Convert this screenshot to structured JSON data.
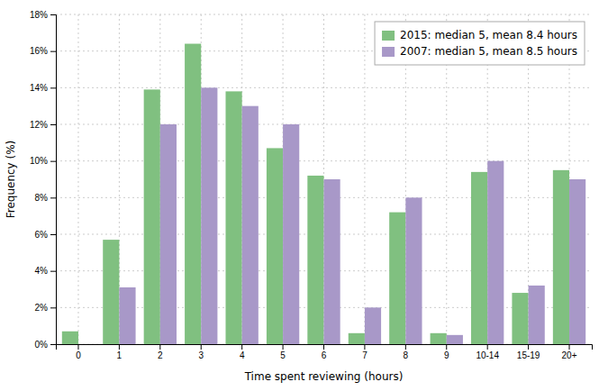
{
  "chart_data": {
    "type": "bar",
    "categories": [
      "0",
      "1",
      "2",
      "3",
      "4",
      "5",
      "6",
      "7",
      "8",
      "9",
      "10-14",
      "15-19",
      "20+"
    ],
    "series": [
      {
        "name": "2015: median 5, mean 8.4 hours",
        "color": "#80c080",
        "values": [
          0.7,
          5.7,
          13.9,
          16.4,
          13.8,
          10.7,
          9.2,
          0.6,
          7.2,
          0.6,
          9.4,
          2.8,
          9.5
        ]
      },
      {
        "name": "2007: median 5, mean 8.5 hours",
        "color": "#a898c8",
        "values": [
          0.0,
          3.1,
          12.0,
          14.0,
          13.0,
          12.0,
          9.0,
          2.0,
          8.0,
          0.5,
          10.0,
          3.2,
          9.0
        ]
      }
    ],
    "xlabel": "Time spent reviewing (hours)",
    "ylabel": "Frequency (%)",
    "ylim": [
      0,
      18
    ],
    "yticks": [
      {
        "value": 0,
        "label": "0%"
      },
      {
        "value": 2,
        "label": "2%"
      },
      {
        "value": 4,
        "label": "4%"
      },
      {
        "value": 6,
        "label": "6%"
      },
      {
        "value": 8,
        "label": "8%"
      },
      {
        "value": 10,
        "label": "10%"
      },
      {
        "value": 12,
        "label": "12%"
      },
      {
        "value": 14,
        "label": "14%"
      },
      {
        "value": 16,
        "label": "16%"
      },
      {
        "value": 18,
        "label": "18%"
      }
    ],
    "grid": true,
    "legend": "upper right"
  }
}
